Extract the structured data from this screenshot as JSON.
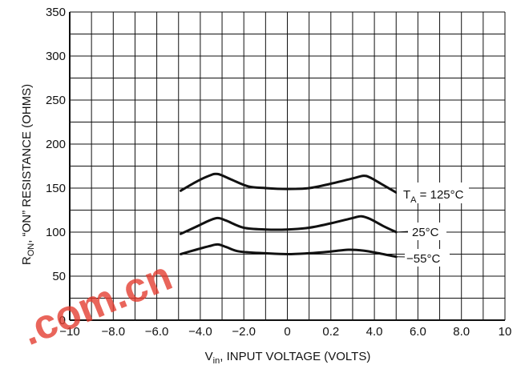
{
  "chart_data": {
    "type": "line",
    "title": "",
    "xlabel_main": "V",
    "xlabel_sub": "in",
    "xlabel_rest": ", INPUT VOLTAGE (VOLTS)",
    "ylabel_main": "R",
    "ylabel_sub": "ON",
    "ylabel_rest": ", “ON” RESISTANCE (OHMS)",
    "x_tick_labels": [
      "−10",
      "−8.0",
      "−6.0",
      "−4.0",
      "−2.0",
      "0",
      "0.2",
      "4.0",
      "6.0",
      "8.0",
      "10"
    ],
    "y_tick_labels": [
      "0",
      "50",
      "100",
      "150",
      "200",
      "250",
      "300",
      "350"
    ],
    "xlim": [
      -10,
      10
    ],
    "ylim": [
      0,
      350
    ],
    "grid": true,
    "series": [
      {
        "name": "TA = 125°C",
        "label_main": "T",
        "label_sub": "A",
        "label_rest": " = 125°C",
        "x": [
          -4.9,
          -4.2,
          -3.6,
          -3.2,
          -2.6,
          -1.8,
          -1.0,
          0.0,
          1.0,
          2.0,
          3.0,
          3.5,
          3.8,
          4.3,
          5.0
        ],
        "y": [
          147,
          157,
          164,
          166,
          160,
          152,
          150,
          149,
          150,
          155,
          161,
          164,
          162,
          155,
          145
        ]
      },
      {
        "name": "25°C",
        "label_main": "25°C",
        "x": [
          -4.9,
          -4.2,
          -3.6,
          -3.2,
          -2.8,
          -2.0,
          -1.0,
          0.0,
          1.0,
          2.0,
          3.0,
          3.4,
          3.8,
          4.4,
          5.0
        ],
        "y": [
          98,
          106,
          113,
          116,
          113,
          105,
          103,
          103,
          105,
          110,
          116,
          118,
          115,
          107,
          100
        ]
      },
      {
        "name": "−55°C",
        "label_main": "−55°C",
        "x": [
          -4.9,
          -4.2,
          -3.6,
          -3.2,
          -2.8,
          -2.2,
          -1.0,
          0.0,
          1.0,
          2.0,
          2.8,
          3.5,
          4.2,
          5.0
        ],
        "y": [
          75,
          80,
          84,
          86,
          83,
          78,
          76,
          75,
          76,
          78,
          80,
          79,
          76,
          72
        ]
      }
    ],
    "colors": {
      "line": "#111111",
      "grid": "#111111",
      "watermark": "#e33b2e"
    },
    "watermark": ".com.cn"
  }
}
